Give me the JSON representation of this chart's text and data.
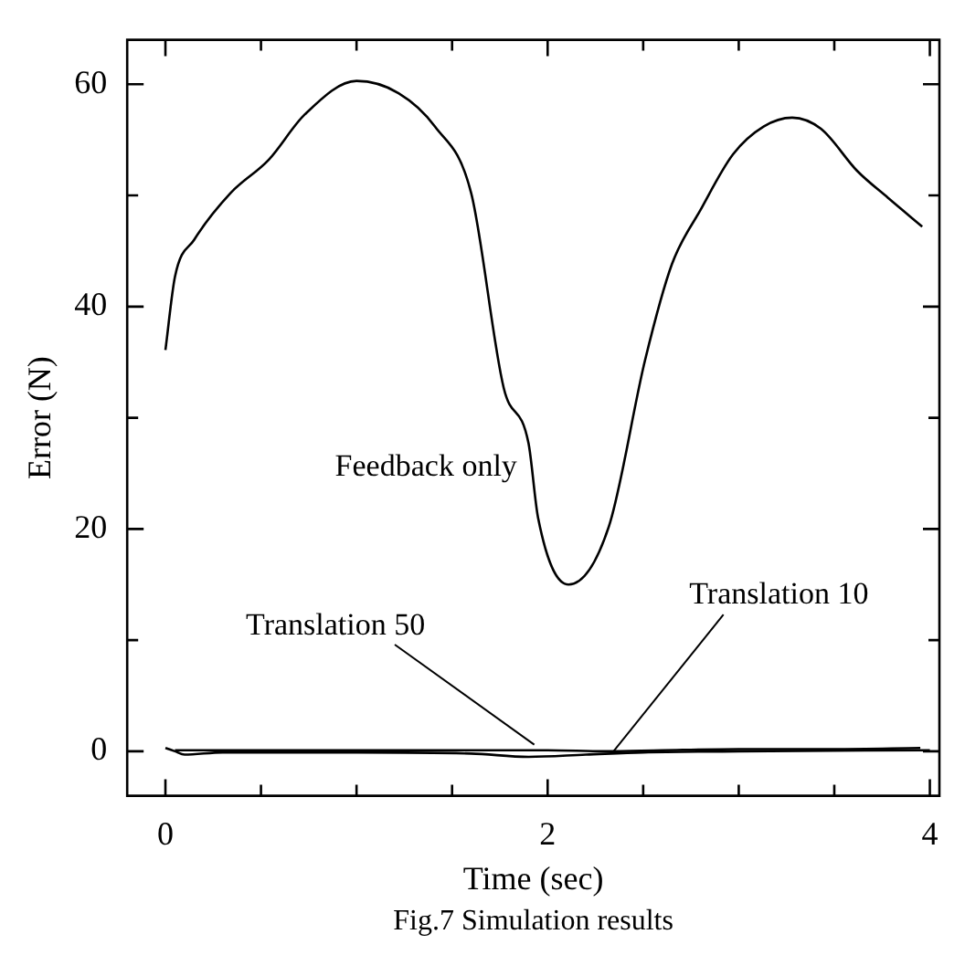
{
  "chart_data": {
    "type": "line",
    "xlabel": "Time (sec)",
    "ylabel": "Error (N)",
    "annotations": [
      "Fig.7 Simulation results"
    ],
    "xlim": [
      -0.2,
      4.05
    ],
    "xticks": [
      0,
      {
        "value": 0.5,
        "label": null
      },
      {
        "value": 1,
        "label": null
      },
      {
        "value": 1.5,
        "label": null
      },
      2,
      {
        "value": 2.5,
        "label": null
      },
      {
        "value": 3,
        "label": null
      },
      {
        "value": 3.5,
        "label": null
      },
      4
    ],
    "ylim": [
      -4,
      64
    ],
    "yticks": [
      0,
      {
        "value": 10,
        "label": null
      },
      20,
      {
        "value": 30,
        "label": null
      },
      40,
      {
        "value": 50,
        "label": null
      },
      60
    ],
    "grid": false,
    "legend": false,
    "marker": "none",
    "line_style": "solid",
    "series": [
      {
        "name": "Feedback only",
        "color": "#000000",
        "x": [
          0,
          0.05,
          0.15,
          0.34,
          0.54,
          0.73,
          1.0,
          1.22,
          1.41,
          1.6,
          1.77,
          1.9,
          1.95,
          2.11,
          2.32,
          2.51,
          2.65,
          2.8,
          2.97,
          3.13,
          3.28,
          3.43,
          3.62,
          3.78,
          3.96
        ],
        "values": [
          36.1,
          42.7,
          46,
          50.2,
          53.2,
          57.3,
          60.3,
          59.2,
          56.2,
          50.2,
          32.7,
          27.7,
          21,
          15,
          20.2,
          35.2,
          43.8,
          48.7,
          53.7,
          56.2,
          57,
          56,
          52.2,
          49.8,
          47.2
        ]
      },
      {
        "name": "Translation 50",
        "color": "#000000",
        "x": [
          0,
          0.05,
          0.1,
          0.3,
          1.0,
          1.6,
          1.9,
          2.2,
          2.5,
          3.0,
          4.0
        ],
        "values": [
          0.3,
          0,
          -0.3,
          -0.1,
          -0.1,
          -0.2,
          -0.5,
          -0.3,
          -0.1,
          0,
          0.1
        ]
      },
      {
        "name": "Translation 10",
        "color": "#000000",
        "x": [
          0.05,
          0.1,
          0.5,
          1.0,
          1.5,
          2.0,
          2.3,
          2.6,
          3.0,
          3.5,
          3.95
        ],
        "values": [
          0.1,
          0.1,
          0.1,
          0.1,
          0.1,
          0.1,
          0,
          0.1,
          0.2,
          0.2,
          0.3
        ]
      }
    ]
  }
}
